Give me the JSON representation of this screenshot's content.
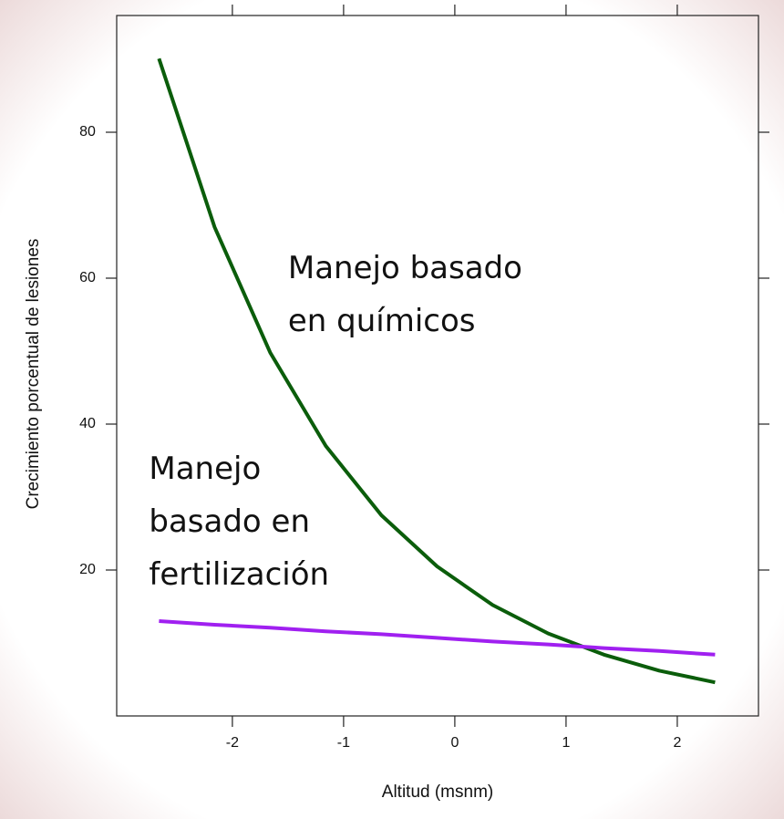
{
  "chart_data": {
    "type": "line",
    "xlabel": "Altitud (msnm)",
    "ylabel": "Crecimiento porcentual de lesiones",
    "x": [
      -2.66,
      -2.16,
      -1.66,
      -1.16,
      -0.66,
      -0.16,
      0.34,
      0.84,
      1.34,
      1.84,
      2.34
    ],
    "series": [
      {
        "color": "#0b5d0b",
        "values": [
          90.1,
          67.0,
          49.8,
          37.0,
          27.5,
          20.5,
          15.2,
          11.3,
          8.4,
          6.2,
          4.6
        ]
      },
      {
        "color": "#a020f0",
        "values": [
          13.0,
          12.5,
          12.1,
          11.6,
          11.2,
          10.7,
          10.2,
          9.8,
          9.3,
          8.9,
          8.4
        ]
      }
    ],
    "annotations": [
      {
        "lines": [
          "Manejo basado",
          "en químicos"
        ],
        "x": -1.5,
        "y": 60
      },
      {
        "lines": [
          "Manejo",
          "basado en",
          "fertilización"
        ],
        "x": -2.75,
        "y": 32.5
      }
    ],
    "xlim": [
      -3.04,
      2.73
    ],
    "ylim": [
      0,
      96
    ],
    "xticks": [
      -2,
      -1,
      0,
      1,
      2
    ],
    "yticks": [
      20,
      40,
      60,
      80
    ]
  }
}
